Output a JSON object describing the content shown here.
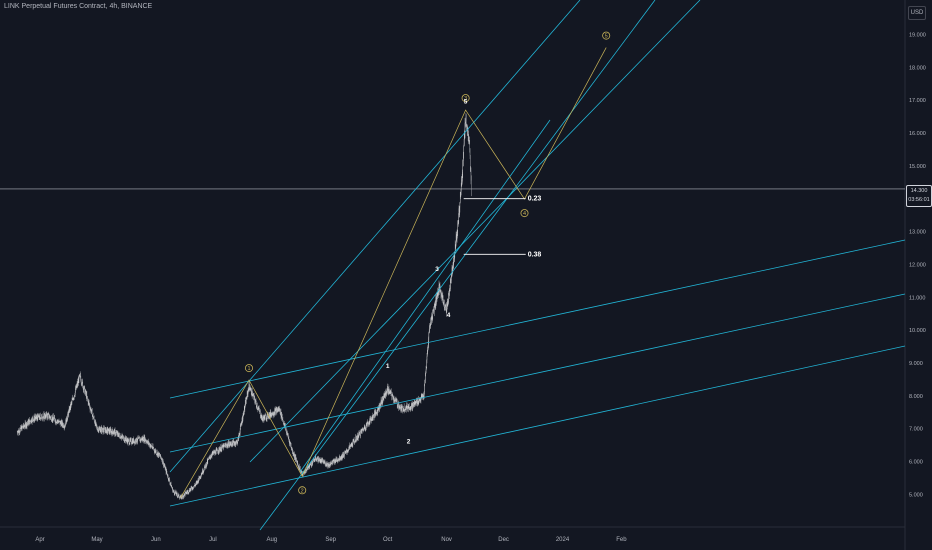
{
  "header": {
    "symbol_title": "LINK Perpetual Futures Contract, 4h, BINANCE",
    "currency": "USD"
  },
  "price_marker": {
    "price": "14.300",
    "countdown": "03:56:01"
  },
  "colors": {
    "background": "#131722",
    "candles": "#e6e6e6",
    "channel": "#22b5d6",
    "wave": "#c9b458",
    "grid_text": "#b2b5be"
  },
  "chart_data": {
    "type": "line",
    "title": "LINK Perpetual Futures Contract, 4h, BINANCE",
    "xlabel": "",
    "ylabel": "",
    "x_ticks": [
      "Apr",
      "May",
      "Jun",
      "Jul",
      "Aug",
      "Sep",
      "Oct",
      "Nov",
      "Dec",
      "2024",
      "Feb"
    ],
    "y_ticks": [
      "5.000",
      "6.000",
      "7.000",
      "8.000",
      "9.000",
      "10.000",
      "11.000",
      "12.000",
      "13.000",
      "14.000",
      "15.000",
      "16.000",
      "17.000",
      "18.000",
      "19.000"
    ],
    "ylim": [
      4.5,
      20
    ],
    "x": [
      "2023-03-20",
      "2023-03-28",
      "2023-04-05",
      "2023-04-14",
      "2023-04-22",
      "2023-05-01",
      "2023-05-10",
      "2023-05-18",
      "2023-05-26",
      "2023-06-04",
      "2023-06-10",
      "2023-06-14",
      "2023-06-22",
      "2023-06-30",
      "2023-07-08",
      "2023-07-14",
      "2023-07-20",
      "2023-07-27",
      "2023-08-05",
      "2023-08-12",
      "2023-08-17",
      "2023-08-24",
      "2023-08-31",
      "2023-09-08",
      "2023-09-17",
      "2023-09-25",
      "2023-10-01",
      "2023-10-08",
      "2023-10-14",
      "2023-10-20",
      "2023-10-23",
      "2023-10-28",
      "2023-11-01",
      "2023-11-05",
      "2023-11-07",
      "2023-11-09",
      "2023-11-11",
      "2023-11-13",
      "2023-11-14"
    ],
    "series": [
      {
        "values": [
          6.9,
          7.3,
          7.4,
          7.1,
          8.6,
          7.0,
          6.9,
          6.6,
          6.7,
          6.1,
          5.1,
          4.9,
          5.3,
          6.2,
          6.5,
          6.6,
          8.3,
          7.3,
          7.6,
          6.3,
          5.6,
          6.1,
          5.9,
          6.2,
          6.9,
          7.5,
          8.2,
          7.6,
          7.7,
          8.0,
          10.1,
          11.3,
          10.6,
          12.3,
          13.2,
          14.6,
          16.5,
          15.6,
          14.3
        ]
      }
    ],
    "grid": false,
    "wave_labels": [
      "1",
      "2",
      "3",
      "4",
      "5"
    ],
    "wave_counts_major": [
      {
        "label": "1",
        "date": "2023-07-20",
        "price": 8.48
      },
      {
        "label": "2",
        "date": "2023-08-17",
        "price": 5.55
      },
      {
        "label": "3",
        "date": "2023-11-11",
        "price": 16.7
      },
      {
        "label": "4",
        "date": "2023-12-12",
        "price": 13.99
      },
      {
        "label": "5",
        "date": "2024-01-24",
        "price": 18.6
      }
    ],
    "fib_levels": [
      {
        "label": "0.23",
        "date": "2023-11-10",
        "price": 14.0
      },
      {
        "label": "0.38",
        "date": "2023-11-10",
        "price": 12.31
      }
    ]
  }
}
